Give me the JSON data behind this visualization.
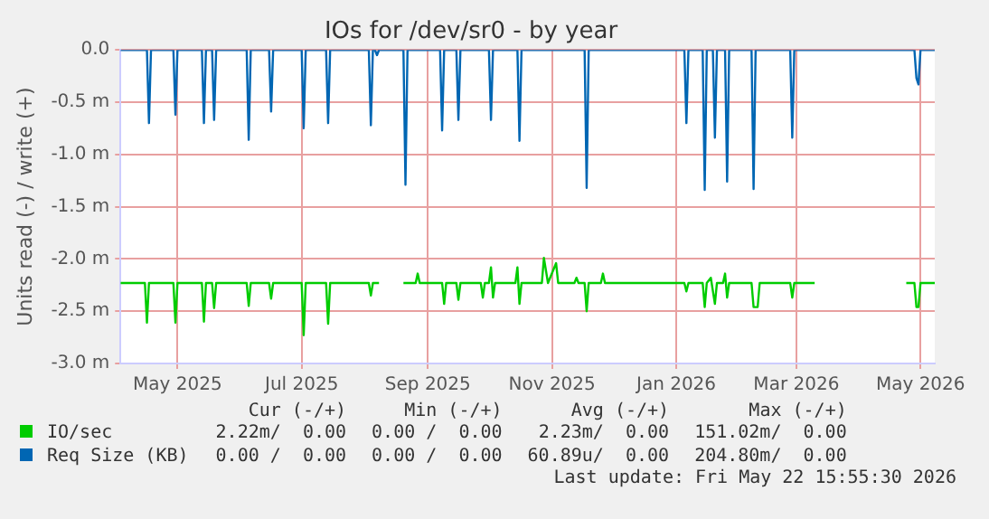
{
  "chart_data": {
    "type": "line",
    "title": "IOs for /dev/sr0 - by year",
    "ylabel": "Units read (-) / write (+)",
    "xlim": [
      "2025-04-17",
      "2026-05-22"
    ],
    "xticks": [
      {
        "value": "2025-05-15",
        "label": "May 2025"
      },
      {
        "value": "2025-07-15",
        "label": "Jul 2025"
      },
      {
        "value": "2025-09-15",
        "label": "Sep 2025"
      },
      {
        "value": "2025-11-15",
        "label": "Nov 2025"
      },
      {
        "value": "2026-01-15",
        "label": "Jan 2026"
      },
      {
        "value": "2026-03-15",
        "label": "Mar 2026"
      },
      {
        "value": "2026-05-15",
        "label": "May 2026"
      }
    ],
    "ylim": [
      -3,
      0
    ],
    "yticks": [
      {
        "value": 0,
        "label": "0.0"
      },
      {
        "value": -0.5,
        "label": "-0.5 m"
      },
      {
        "value": -1,
        "label": "-1.0 m"
      },
      {
        "value": -1.5,
        "label": "-1.5 m"
      },
      {
        "value": -2,
        "label": "-2.0 m"
      },
      {
        "value": -2.5,
        "label": "-2.5 m"
      },
      {
        "value": -3,
        "label": "-3.0 m"
      }
    ],
    "grid": true,
    "legend": "bottom",
    "marker": "none",
    "line_style": "solid",
    "series": [
      {
        "name": "IO/sec",
        "color": "#00cc00",
        "x": [
          "2025-04-17",
          "2025-04-29",
          "2025-04-30",
          "2025-05-01",
          "2025-05-13",
          "2025-05-14",
          "2025-05-15",
          "2025-05-27",
          "2025-05-28",
          "2025-05-29",
          "2025-06-01",
          "2025-06-02",
          "2025-06-03",
          "2025-06-18",
          "2025-06-19",
          "2025-06-20",
          "2025-06-29",
          "2025-06-30",
          "2025-07-01",
          "2025-07-15",
          "2025-07-16",
          "2025-07-17",
          "2025-07-27",
          "2025-07-28",
          "2025-07-29",
          "2025-08-17",
          "2025-08-18",
          "2025-08-19",
          "2025-08-22",
          "2025-08-23",
          "2025-09-03",
          "2025-09-09",
          "2025-09-10",
          "2025-09-11",
          "2025-09-22",
          "2025-09-23",
          "2025-09-24",
          "2025-09-29",
          "2025-09-30",
          "2025-10-01",
          "2025-10-11",
          "2025-10-12",
          "2025-10-13",
          "2025-10-15",
          "2025-10-16",
          "2025-10-17",
          "2025-10-18",
          "2025-10-28",
          "2025-10-29",
          "2025-10-30",
          "2025-10-31",
          "2025-11-10",
          "2025-11-11",
          "2025-11-13",
          "2025-11-17",
          "2025-11-18",
          "2025-11-26",
          "2025-11-27",
          "2025-11-28",
          "2025-12-01",
          "2025-12-02",
          "2025-12-03",
          "2025-12-09",
          "2025-12-10",
          "2025-12-11",
          "2026-01-19",
          "2026-01-20",
          "2026-01-21",
          "2026-01-28",
          "2026-01-29",
          "2026-01-30",
          "2026-02-01",
          "2026-02-03",
          "2026-02-04",
          "2026-02-07",
          "2026-02-08",
          "2026-02-09",
          "2026-02-10",
          "2026-02-21",
          "2026-02-22",
          "2026-02-24",
          "2026-02-25",
          "2026-03-12",
          "2026-03-13",
          "2026-03-14",
          "2026-03-24",
          "2026-03-25",
          "2026-05-08",
          "2026-05-12",
          "2026-05-13",
          "2026-05-14",
          "2026-05-15",
          "2026-05-22"
        ],
        "values": [
          -2.23,
          -2.23,
          -2.61,
          -2.23,
          -2.23,
          -2.61,
          -2.23,
          -2.23,
          -2.6,
          -2.23,
          -2.23,
          -2.47,
          -2.23,
          -2.23,
          -2.45,
          -2.23,
          -2.23,
          -2.38,
          -2.23,
          -2.23,
          -2.73,
          -2.23,
          -2.23,
          -2.62,
          -2.23,
          -2.23,
          -2.35,
          -2.23,
          -2.23,
          null,
          -2.23,
          -2.23,
          -2.14,
          -2.23,
          -2.23,
          -2.43,
          -2.23,
          -2.23,
          -2.39,
          -2.23,
          -2.23,
          -2.37,
          -2.23,
          -2.23,
          -2.08,
          -2.37,
          -2.23,
          -2.23,
          -2.08,
          -2.43,
          -2.23,
          -2.23,
          -1.99,
          -2.23,
          -2.04,
          -2.23,
          -2.23,
          -2.18,
          -2.23,
          -2.23,
          -2.5,
          -2.23,
          -2.23,
          -2.14,
          -2.23,
          -2.23,
          -2.31,
          -2.23,
          -2.23,
          -2.46,
          -2.23,
          -2.18,
          -2.43,
          -2.23,
          -2.23,
          -2.14,
          -2.37,
          -2.23,
          -2.23,
          -2.46,
          -2.46,
          -2.23,
          -2.23,
          -2.37,
          -2.23,
          -2.23,
          null,
          -2.23,
          -2.23,
          -2.46,
          -2.46,
          -2.23,
          -2.23
        ]
      },
      {
        "name": "Req Size (KB)",
        "color": "#0066b3",
        "x": [
          "2025-04-17",
          "2025-04-30",
          "2025-05-01",
          "2025-05-02",
          "2025-05-13",
          "2025-05-14",
          "2025-05-15",
          "2025-05-27",
          "2025-05-28",
          "2025-05-29",
          "2025-06-01",
          "2025-06-02",
          "2025-06-03",
          "2025-06-18",
          "2025-06-19",
          "2025-06-20",
          "2025-06-29",
          "2025-06-30",
          "2025-07-01",
          "2025-07-15",
          "2025-07-16",
          "2025-07-17",
          "2025-07-27",
          "2025-07-28",
          "2025-07-29",
          "2025-08-17",
          "2025-08-18",
          "2025-08-19",
          "2025-08-20",
          "2025-08-21",
          "2025-08-22",
          "2025-09-03",
          "2025-09-04",
          "2025-09-05",
          "2025-09-21",
          "2025-09-22",
          "2025-09-23",
          "2025-09-29",
          "2025-09-30",
          "2025-10-01",
          "2025-10-15",
          "2025-10-16",
          "2025-10-17",
          "2025-10-29",
          "2025-10-30",
          "2025-10-31",
          "2025-12-01",
          "2025-12-02",
          "2025-12-03",
          "2026-01-19",
          "2026-01-20",
          "2026-01-21",
          "2026-01-28",
          "2026-01-29",
          "2026-01-30",
          "2026-02-02",
          "2026-02-03",
          "2026-02-04",
          "2026-02-08",
          "2026-02-09",
          "2026-02-10",
          "2026-02-21",
          "2026-02-22",
          "2026-02-23",
          "2026-03-12",
          "2026-03-13",
          "2026-03-14",
          "2026-05-12",
          "2026-05-13",
          "2026-05-14",
          "2026-05-15",
          "2026-05-22"
        ],
        "values": [
          0,
          0,
          -0.7,
          0,
          0,
          -0.62,
          0,
          0,
          -0.7,
          0,
          0,
          -0.67,
          0,
          0,
          -0.86,
          0,
          0,
          -0.59,
          0,
          0,
          -0.75,
          0,
          0,
          -0.7,
          0,
          0,
          -0.72,
          0,
          0,
          -0.05,
          0,
          0,
          -1.29,
          0,
          0,
          -0.77,
          0,
          0,
          -0.67,
          0,
          0,
          -0.67,
          0,
          0,
          -0.87,
          0,
          0,
          -1.32,
          0,
          0,
          -0.7,
          0,
          0,
          -1.34,
          0,
          0,
          -0.84,
          0,
          0,
          -1.26,
          0,
          0,
          -1.33,
          0,
          0,
          -0.84,
          0,
          0,
          -0.27,
          -0.33,
          0,
          0
        ]
      }
    ],
    "annotations": [
      "Cur (-/+)",
      "Min (-/+)",
      "Avg (-/+)",
      "Max (-/+)",
      "2.22m/  0.00",
      "0.00 /  0.00",
      "2.23m/  0.00",
      "151.02m/  0.00",
      "0.00 /  0.00",
      "0.00 /  0.00",
      "60.89u/  0.00",
      "204.80m/  0.00",
      "Last update: Fri May 22 15:55:30 2026"
    ]
  }
}
